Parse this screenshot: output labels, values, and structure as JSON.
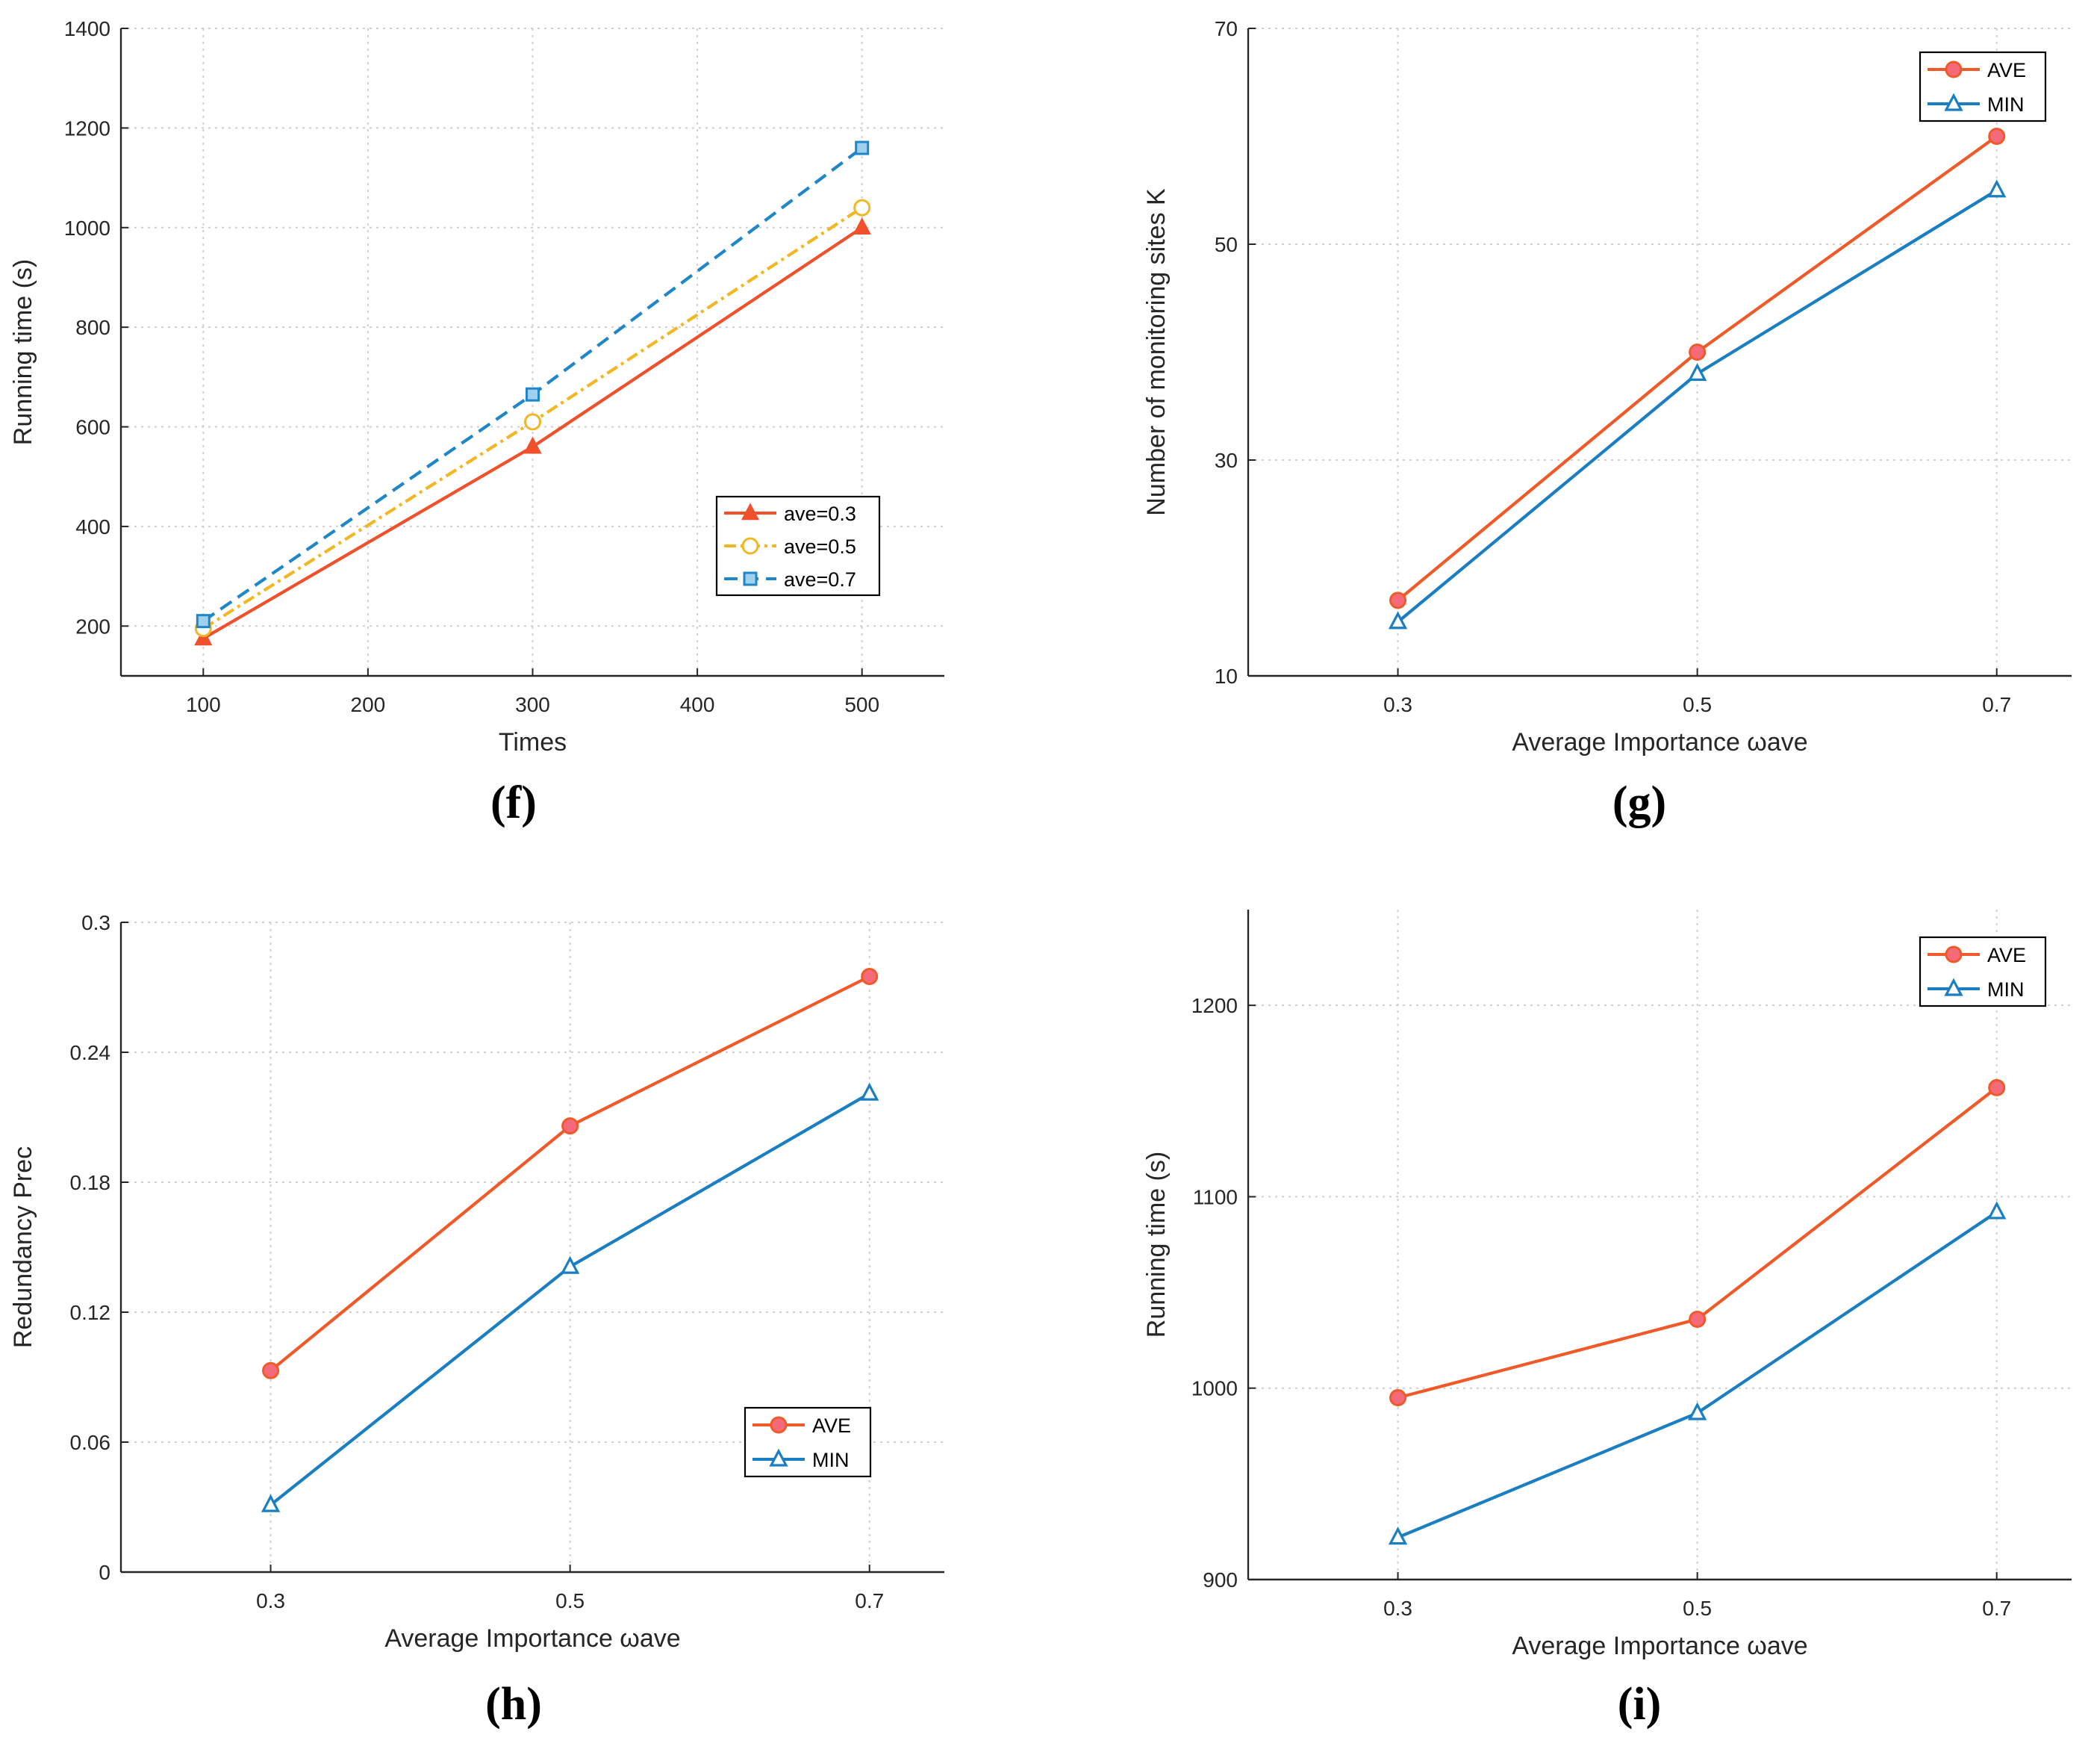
{
  "colors": {
    "ave": "#f05a28",
    "ave_marker_fill": "#f46a7a",
    "min": "#1a7ec3",
    "s03": "#f0502a",
    "s05": "#f2b723",
    "s07": "#1f86c8",
    "axis": "#262626",
    "grid": "#cfcfcf"
  },
  "chart_data": [
    {
      "id": "f",
      "panel_label": "(f)",
      "type": "line",
      "xlabel": "Times",
      "ylabel": "Running time (s)",
      "xlim": [
        50,
        550
      ],
      "ylim": [
        100,
        1400
      ],
      "xticks": [
        100,
        200,
        300,
        400,
        500
      ],
      "xtick_labels": [
        "100",
        "200",
        "300",
        "400",
        "500"
      ],
      "yticks": [
        200,
        400,
        600,
        800,
        1000,
        1200,
        1400
      ],
      "ytick_labels": [
        "200",
        "400",
        "600",
        "800",
        "1000",
        "1200",
        "1400"
      ],
      "grid": true,
      "legend_position": "lower-right",
      "series": [
        {
          "name": "ave=0.3",
          "x": [
            100,
            300,
            500
          ],
          "values": [
            175,
            560,
            1000
          ],
          "color_key": "s03",
          "marker": "triangle",
          "dash": "solid"
        },
        {
          "name": "ave=0.5",
          "x": [
            100,
            300,
            500
          ],
          "values": [
            195,
            610,
            1040
          ],
          "color_key": "s05",
          "marker": "circle-open",
          "dash": "dashdot"
        },
        {
          "name": "ave=0.7",
          "x": [
            100,
            300,
            500
          ],
          "values": [
            210,
            665,
            1160
          ],
          "color_key": "s07",
          "marker": "square",
          "dash": "dash"
        }
      ]
    },
    {
      "id": "g",
      "panel_label": "(g)",
      "type": "line",
      "xlabel": "Average Importance ωave",
      "ylabel": "Number of monitoring sites K",
      "xlim": [
        0.2,
        0.75
      ],
      "ylim": [
        10,
        70
      ],
      "xticks": [
        0.3,
        0.5,
        0.7
      ],
      "xtick_labels": [
        "0.3",
        "0.5",
        "0.7"
      ],
      "yticks": [
        10,
        30,
        50,
        70
      ],
      "ytick_labels": [
        "10",
        "30",
        "50",
        "70"
      ],
      "grid": true,
      "legend_position": "top-right",
      "series": [
        {
          "name": "AVE",
          "x": [
            0.3,
            0.5,
            0.7
          ],
          "values": [
            17,
            40,
            60
          ],
          "color_key": "ave",
          "marker": "circle"
        },
        {
          "name": "MIN",
          "x": [
            0.3,
            0.5,
            0.7
          ],
          "values": [
            15,
            38,
            55
          ],
          "color_key": "min",
          "marker": "triangle-open"
        }
      ]
    },
    {
      "id": "h",
      "panel_label": "(h)",
      "type": "line",
      "xlabel": "Average Importance ωave",
      "ylabel": "Redundancy Prec",
      "xlim": [
        0.2,
        0.75
      ],
      "ylim": [
        0,
        0.3
      ],
      "xticks": [
        0.3,
        0.5,
        0.7
      ],
      "xtick_labels": [
        "0.3",
        "0.5",
        "0.7"
      ],
      "yticks": [
        0,
        0.06,
        0.12,
        0.18,
        0.24,
        0.3
      ],
      "ytick_labels": [
        "0",
        "0.06",
        "0.12",
        "0.18",
        "0.24",
        "0.3"
      ],
      "grid": true,
      "legend_position": "lower-right",
      "series": [
        {
          "name": "AVE",
          "x": [
            0.3,
            0.5,
            0.7
          ],
          "values": [
            0.093,
            0.206,
            0.275
          ],
          "color_key": "ave",
          "marker": "circle"
        },
        {
          "name": "MIN",
          "x": [
            0.3,
            0.5,
            0.7
          ],
          "values": [
            0.031,
            0.141,
            0.221
          ],
          "color_key": "min",
          "marker": "triangle-open"
        }
      ]
    },
    {
      "id": "i",
      "panel_label": "(i)",
      "type": "line",
      "xlabel": "Average Importance ωave",
      "ylabel": "Running time (s)",
      "xlim": [
        0.2,
        0.75
      ],
      "ylim": [
        900,
        1250
      ],
      "xticks": [
        0.3,
        0.5,
        0.7
      ],
      "xtick_labels": [
        "0.3",
        "0.5",
        "0.7"
      ],
      "yticks": [
        900,
        1000,
        1100,
        1200
      ],
      "ytick_labels": [
        "900",
        "1000",
        "1100",
        "1200"
      ],
      "grid": true,
      "legend_position": "top-right",
      "series": [
        {
          "name": "AVE",
          "x": [
            0.3,
            0.5,
            0.7
          ],
          "values": [
            995,
            1036,
            1157
          ],
          "color_key": "ave",
          "marker": "circle"
        },
        {
          "name": "MIN",
          "x": [
            0.3,
            0.5,
            0.7
          ],
          "values": [
            922,
            987,
            1092
          ],
          "color_key": "min",
          "marker": "triangle-open"
        }
      ]
    }
  ]
}
